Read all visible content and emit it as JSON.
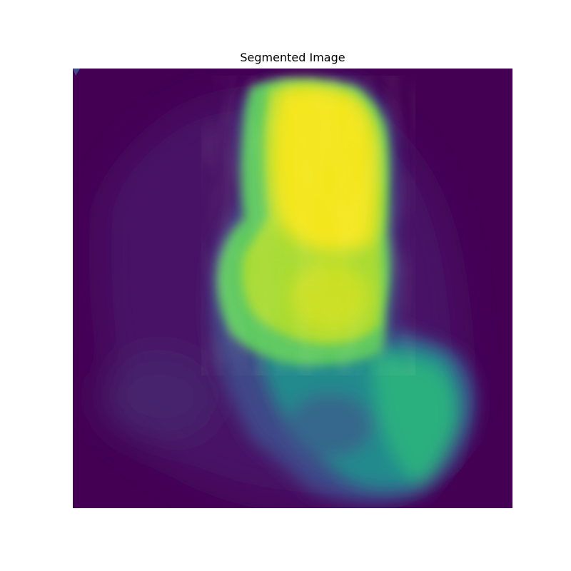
{
  "figure": {
    "title": "Segmented Image"
  },
  "image": {
    "colormap": "viridis",
    "colors": {
      "background": "#440154",
      "halo": "#47286f",
      "dark_purple": "#433a83",
      "blue": "#355f8d",
      "teal": "#21908d",
      "green": "#35b779",
      "lime": "#7ad151",
      "yellow": "#fde725",
      "bright_yellow": "#f1e51d"
    }
  }
}
